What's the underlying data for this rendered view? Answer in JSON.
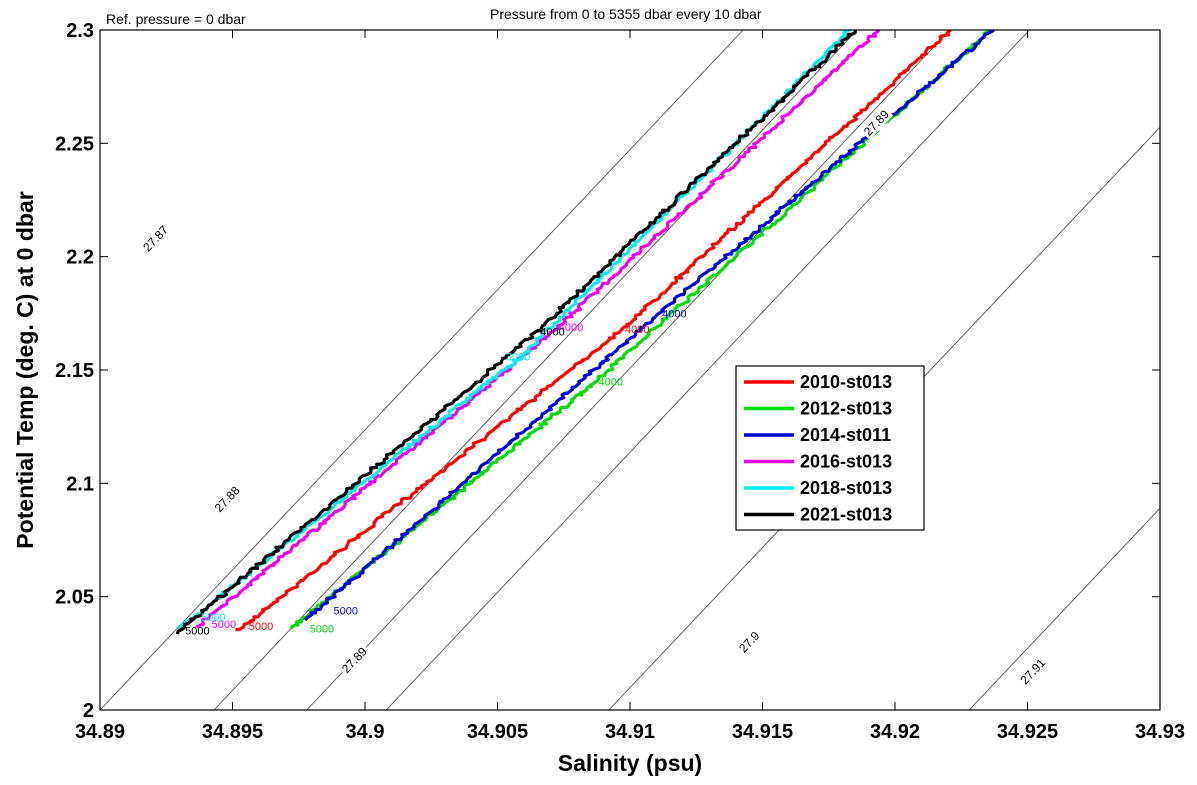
{
  "chart_data": {
    "type": "line",
    "title": "Pressure from 0 to 5355 dbar every 10 dbar",
    "subtitle": "Ref. pressure = 0 dbar",
    "xlabel": "Salinity (psu)",
    "ylabel": "Potential Temp (deg. C) at 0 dbar",
    "xlim": [
      34.89,
      34.93
    ],
    "ylim": [
      2.0,
      2.3
    ],
    "xticks": [
      "34.89",
      "34.895",
      "34.9",
      "34.905",
      "34.91",
      "34.915",
      "34.92",
      "34.925",
      "34.93"
    ],
    "yticks": [
      "2",
      "2.05",
      "2.1",
      "2.15",
      "2.2",
      "2.25",
      "2.3"
    ],
    "grid": false,
    "legend_position": "center-right",
    "series": [
      {
        "name": "2010-st013",
        "color": "#ff0000",
        "x": [
          34.8952,
          34.9097,
          34.9221
        ],
        "y": [
          2.035,
          2.168,
          2.3
        ]
      },
      {
        "name": "2012-st013",
        "color": "#00dd00",
        "x": [
          34.8972,
          34.9087,
          34.9236
        ],
        "y": [
          2.036,
          2.145,
          2.3
        ]
      },
      {
        "name": "2014-st011",
        "color": "#0000dd",
        "x": [
          34.8978,
          34.9111,
          34.9237
        ],
        "y": [
          2.04,
          2.175,
          2.3
        ]
      },
      {
        "name": "2016-st013",
        "color": "#ee00ee",
        "x": [
          34.8936,
          34.9072,
          34.9194
        ],
        "y": [
          2.036,
          2.168,
          2.3
        ]
      },
      {
        "name": "2018-st013",
        "color": "#00eeee",
        "x": [
          34.893,
          34.906,
          34.9183
        ],
        "y": [
          2.036,
          2.157,
          2.3
        ]
      },
      {
        "name": "2021-st013",
        "color": "#000000",
        "x": [
          34.8929,
          34.9065,
          34.9185
        ],
        "y": [
          2.034,
          2.167,
          2.3
        ]
      }
    ],
    "pressure_labels": [
      {
        "text": "4000",
        "series": 0,
        "x": 34.9097,
        "y": 2.168
      },
      {
        "text": "5000",
        "series": 0,
        "x": 34.8955,
        "y": 2.037
      },
      {
        "text": "4000",
        "series": 1,
        "x": 34.9087,
        "y": 2.145
      },
      {
        "text": "5000",
        "series": 1,
        "x": 34.8978,
        "y": 2.036
      },
      {
        "text": "4000",
        "series": 2,
        "x": 34.9111,
        "y": 2.175
      },
      {
        "text": "5000",
        "series": 2,
        "x": 34.8987,
        "y": 2.044
      },
      {
        "text": "4000",
        "series": 3,
        "x": 34.9072,
        "y": 2.169
      },
      {
        "text": "5000",
        "series": 3,
        "x": 34.8941,
        "y": 2.038
      },
      {
        "text": "3000",
        "series": 4,
        "x": 34.9052,
        "y": 2.156
      },
      {
        "text": "5000",
        "series": 4,
        "x": 34.8937,
        "y": 2.041
      },
      {
        "text": "4000",
        "series": 5,
        "x": 34.9065,
        "y": 2.167
      },
      {
        "text": "5000",
        "series": 5,
        "x": 34.8931,
        "y": 2.035
      }
    ],
    "isopycnals": [
      {
        "label": "27.87",
        "x0": 34.89,
        "slope": 12.36,
        "label_pos": [
          34.8921,
          2.208
        ]
      },
      {
        "label": "27.88",
        "x0": 34.8943,
        "slope": 12.36,
        "label_pos": [
          34.8948,
          2.093
        ]
      },
      {
        "label": "27.89",
        "x0": 34.8978,
        "slope": 12.36,
        "label_pos": [
          34.8996,
          2.022
        ]
      },
      {
        "label": "27.89",
        "x0": 34.9008,
        "slope": 12.36,
        "label_pos": [
          34.9193,
          2.259
        ]
      },
      {
        "label": "27.9",
        "x0": 34.9092,
        "slope": 12.36,
        "label_pos": [
          34.9145,
          2.03
        ]
      },
      {
        "label": "27.91",
        "x0": 34.9228,
        "slope": 12.36,
        "label_pos": [
          34.9252,
          2.017
        ]
      }
    ]
  }
}
